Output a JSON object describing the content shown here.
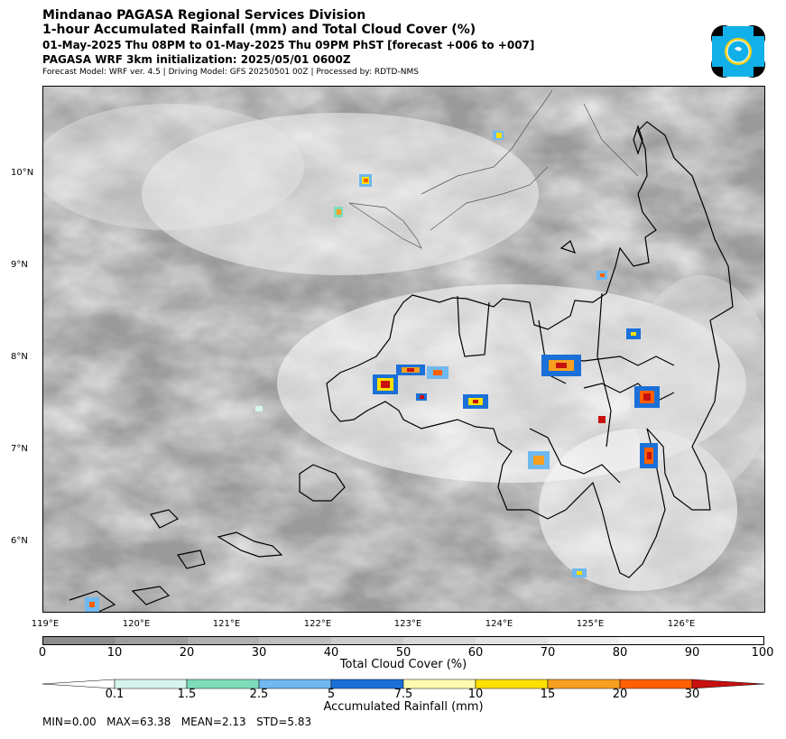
{
  "header": {
    "line1": "Mindanao PAGASA Regional Services Division",
    "line2": "1-hour Accumulated Rainfall (mm) and Total Cloud Cover (%)",
    "line3": "01-May-2025 Thu 08PM to 01-May-2025 Thu 09PM PhST [forecast +006 to +007]",
    "line4": "PAGASA WRF 3km initialization: 2025/05/01 0600Z",
    "line5": "Forecast Model: WRF ver. 4.5 | Driving Model: GFS 20250501 00Z | Processed by: RDTD-NMS"
  },
  "map": {
    "lat_labels": [
      "10°N",
      "9°N",
      "8°N",
      "7°N",
      "6°N"
    ],
    "lon_labels": [
      "119°E",
      "120°E",
      "121°E",
      "122°E",
      "123°E",
      "124°E",
      "125°E",
      "126°E"
    ]
  },
  "cloud_colorbar": {
    "label": "Total Cloud Cover (%)",
    "ticks": [
      "0",
      "10",
      "20",
      "30",
      "40",
      "50",
      "60",
      "70",
      "80",
      "90",
      "100"
    ],
    "colors": [
      "#8c8c8c",
      "#9e9e9e",
      "#b0b0b0",
      "#bfbfbf",
      "#cccccc",
      "#d8d8d8",
      "#e3e3e3",
      "#eeeeee",
      "#f7f7f7",
      "#ffffff"
    ]
  },
  "rain_colorbar": {
    "label": "Accumulated Rainfall (mm)",
    "ticks": [
      "0.1",
      "1.5",
      "2.5",
      "5",
      "7.5",
      "10",
      "15",
      "20",
      "30"
    ],
    "colors": [
      "#ffffff",
      "#d6f5ec",
      "#7fdcbb",
      "#6fb8f0",
      "#1a70d8",
      "#fffcb0",
      "#ffe000",
      "#f7a020",
      "#ff6000",
      "#c81010"
    ]
  },
  "stats": {
    "min": "MIN=0.00",
    "max": "MAX=63.38",
    "mean": "MEAN=2.13",
    "std": "STD=5.83"
  }
}
